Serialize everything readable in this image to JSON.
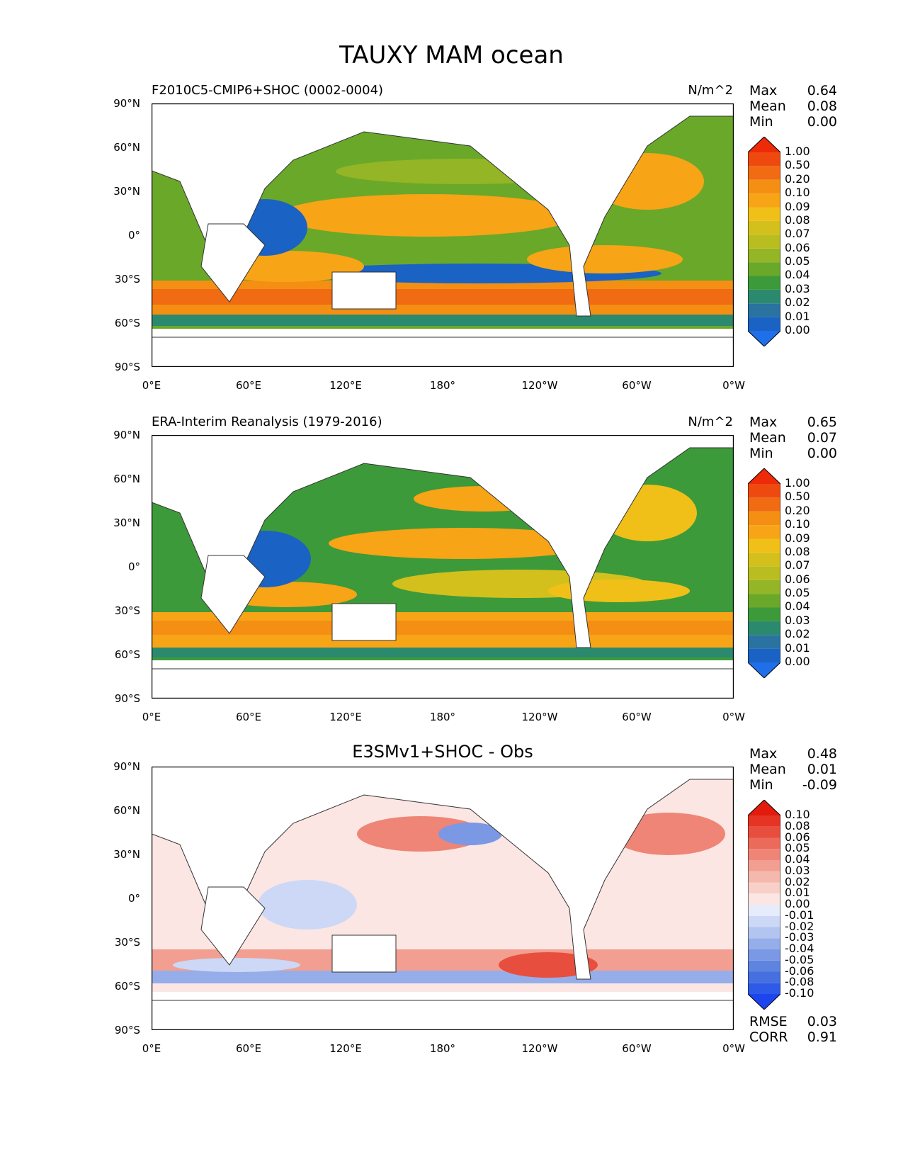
{
  "figure_title": "TAUXY MAM ocean",
  "lat_ticks": [
    "90°N",
    "60°N",
    "30°N",
    "0°",
    "30°S",
    "60°S",
    "90°S"
  ],
  "lon_ticks": [
    "0°E",
    "60°E",
    "120°E",
    "180°",
    "120°W",
    "60°W",
    "0°W"
  ],
  "stat_labels": {
    "max": "Max",
    "mean": "Mean",
    "min": "Min",
    "rmse": "RMSE",
    "corr": "CORR"
  },
  "panels": [
    {
      "title": "F2010C5-CMIP6+SHOC (0002-0004)",
      "units": "N/m^2",
      "max": "0.64",
      "mean": "0.08",
      "min": "0.00"
    },
    {
      "title": "ERA-Interim Reanalysis (1979-2016)",
      "units": "N/m^2",
      "max": "0.65",
      "mean": "0.07",
      "min": "0.00"
    },
    {
      "title": "E3SMv1+SHOC - Obs",
      "units": "",
      "max": "0.48",
      "mean": "0.01",
      "min": "-0.09",
      "rmse": "0.03",
      "corr": "0.91"
    }
  ],
  "colorbar_main": {
    "levels": [
      "0.00",
      "0.01",
      "0.02",
      "0.03",
      "0.04",
      "0.05",
      "0.06",
      "0.07",
      "0.08",
      "0.09",
      "0.10",
      "0.20",
      "0.50",
      "1.00"
    ],
    "colors": [
      "#1f6feb",
      "#1a62c4",
      "#2a72a0",
      "#2b8a6e",
      "#3d9a3a",
      "#6aa82a",
      "#93b526",
      "#b9bd20",
      "#d4c01c",
      "#f0c019",
      "#f7a416",
      "#f48f14",
      "#f06b12",
      "#ee4a10",
      "#ee2a08"
    ]
  },
  "colorbar_diff": {
    "levels": [
      "-0.10",
      "-0.08",
      "-0.06",
      "-0.05",
      "-0.04",
      "-0.03",
      "-0.02",
      "-0.01",
      "0.00",
      "0.01",
      "0.02",
      "0.03",
      "0.04",
      "0.05",
      "0.06",
      "0.08",
      "0.10"
    ],
    "colors": [
      "#1c45f0",
      "#2e5ae8",
      "#4670e0",
      "#5f84e0",
      "#7a98e4",
      "#95aeea",
      "#b2c4f0",
      "#ccd8f6",
      "#e6ecfb",
      "#fbe6e3",
      "#f8d0c8",
      "#f5b8ad",
      "#f29f92",
      "#ef8576",
      "#ec6a5a",
      "#e84e3e",
      "#e53424",
      "#e31b0c"
    ]
  }
}
